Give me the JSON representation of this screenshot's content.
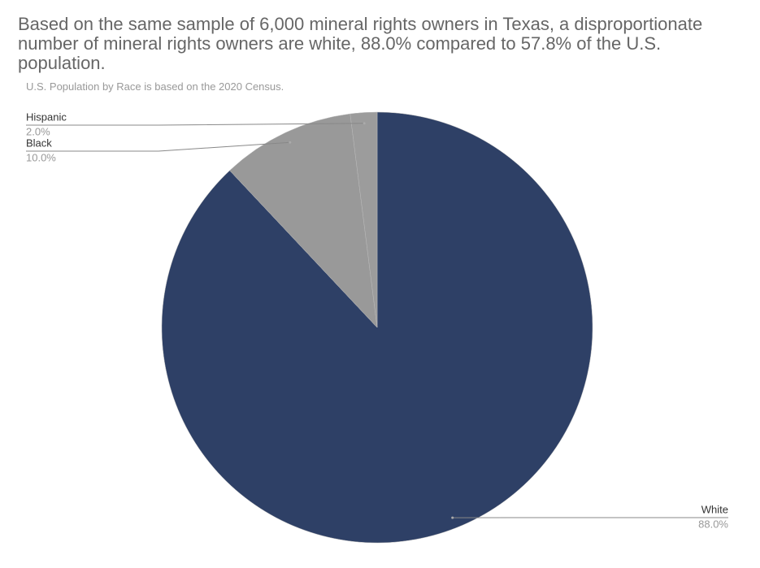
{
  "chart_data": {
    "type": "pie",
    "title": "Based on the same sample of 6,000 mineral rights owners in Texas, a disproportionate number of mineral rights owners are white, 88.0% compared to 57.8% of the U.S. population.",
    "subtitle": "U.S. Population by Race is based on the 2020 Census.",
    "categories": [
      "White",
      "Black",
      "Hispanic"
    ],
    "values": [
      88.0,
      10.0,
      2.0
    ],
    "value_labels": [
      "88.0%",
      "10.0%",
      "2.0%"
    ],
    "colors": [
      "#2e4066",
      "#999999",
      "#9c9c9c"
    ]
  }
}
